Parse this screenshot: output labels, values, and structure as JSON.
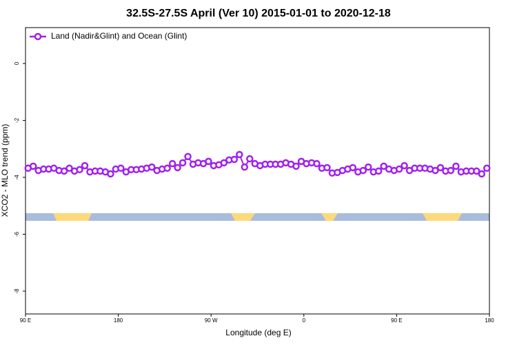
{
  "chart_data": {
    "type": "line",
    "title": "32.5S-27.5S April (Ver 10)   2015-01-01 to 2020-12-18",
    "x_label": "Longitude (deg E)",
    "y_label": "XCO2 - MLO trend (ppm)",
    "legend": "top-left",
    "xlim": [
      90,
      540
    ],
    "xticks": [
      {
        "value": 90,
        "label": "90 E"
      },
      {
        "value": 180,
        "label": "180"
      },
      {
        "value": 270,
        "label": "90 W"
      },
      {
        "value": 360,
        "label": "0"
      },
      {
        "value": 450,
        "label": "90 E"
      },
      {
        "value": 540,
        "label": "180"
      }
    ],
    "ylim": [
      -8.8,
      1.26
    ],
    "yticks": [
      0,
      -2,
      -4,
      -6,
      -8
    ],
    "x": [
      92.5,
      97.5,
      102.5,
      107.5,
      112.5,
      117.5,
      122.5,
      127.5,
      132.5,
      137.5,
      142.5,
      147.5,
      152.5,
      157.5,
      162.5,
      167.5,
      172.5,
      177.5,
      182.5,
      187.5,
      192.5,
      197.5,
      202.5,
      207.5,
      212.5,
      217.5,
      222.5,
      227.5,
      232.5,
      237.5,
      242.5,
      247.5,
      252.5,
      257.5,
      262.5,
      267.5,
      272.5,
      277.5,
      282.5,
      287.5,
      292.5,
      297.5,
      302.5,
      307.5,
      312.5,
      317.5,
      322.5,
      327.5,
      332.5,
      337.5,
      342.5,
      347.5,
      352.5,
      357.5,
      362.5,
      367.5,
      372.5,
      377.5,
      382.5,
      387.5,
      392.5,
      397.5,
      402.5,
      407.5,
      412.5,
      417.5,
      422.5,
      427.5,
      432.5,
      437.5,
      442.5,
      447.5,
      452.5,
      457.5,
      462.5,
      467.5,
      472.5,
      477.5,
      482.5,
      487.5,
      492.5,
      497.5,
      502.5,
      507.5,
      512.5,
      517.5,
      522.5,
      527.5,
      532.5,
      537.5
    ],
    "series": [
      {
        "name": "Land (Nadir&Glint) and Ocean (Glint)",
        "color": "#a020f0",
        "values": [
          -3.68,
          -3.61,
          -3.76,
          -3.71,
          -3.71,
          -3.68,
          -3.76,
          -3.78,
          -3.68,
          -3.78,
          -3.73,
          -3.59,
          -3.81,
          -3.78,
          -3.78,
          -3.81,
          -3.88,
          -3.71,
          -3.68,
          -3.81,
          -3.73,
          -3.73,
          -3.71,
          -3.68,
          -3.64,
          -3.76,
          -3.71,
          -3.68,
          -3.52,
          -3.66,
          -3.49,
          -3.27,
          -3.54,
          -3.49,
          -3.52,
          -3.44,
          -3.59,
          -3.56,
          -3.49,
          -3.39,
          -3.37,
          -3.2,
          -3.64,
          -3.35,
          -3.52,
          -3.59,
          -3.54,
          -3.54,
          -3.54,
          -3.54,
          -3.49,
          -3.54,
          -3.61,
          -3.44,
          -3.52,
          -3.49,
          -3.52,
          -3.68,
          -3.66,
          -3.85,
          -3.83,
          -3.76,
          -3.71,
          -3.66,
          -3.81,
          -3.76,
          -3.64,
          -3.81,
          -3.78,
          -3.61,
          -3.71,
          -3.76,
          -3.71,
          -3.59,
          -3.76,
          -3.68,
          -3.68,
          -3.68,
          -3.71,
          -3.76,
          -3.66,
          -3.78,
          -3.76,
          -3.61,
          -3.81,
          -3.78,
          -3.78,
          -3.78,
          -3.88,
          -3.68
        ]
      }
    ]
  }
}
